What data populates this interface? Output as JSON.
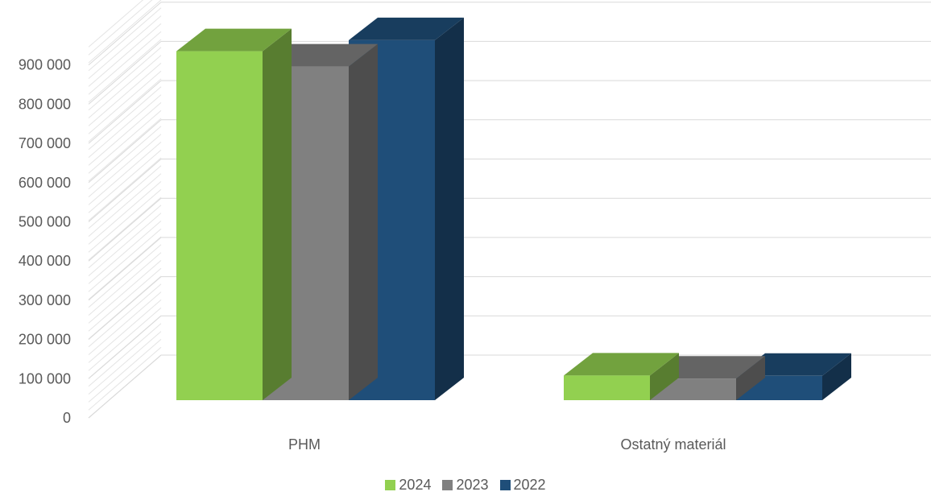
{
  "chart_data": {
    "type": "bar",
    "title": "",
    "xlabel": "",
    "ylabel": "",
    "categories": [
      "PHM",
      "Ostatný materiál"
    ],
    "series": [
      {
        "name": "2024",
        "values": [
          890000,
          63000
        ],
        "color": "#92d050"
      },
      {
        "name": "2023",
        "values": [
          851000,
          55000
        ],
        "color": "#808080"
      },
      {
        "name": "2022",
        "values": [
          918000,
          62000
        ],
        "color": "#1f4e79"
      }
    ],
    "ylim": [
      0,
      900000
    ],
    "yticks": [
      0,
      100000,
      200000,
      300000,
      400000,
      500000,
      600000,
      700000,
      800000,
      900000
    ],
    "ytick_labels": [
      "0",
      "100 000",
      "200 000",
      "300 000",
      "400 000",
      "500 000",
      "600 000",
      "700 000",
      "800 000",
      "900 000"
    ],
    "grid": true,
    "style": "3d-clustered-column",
    "legend_position": "bottom"
  }
}
